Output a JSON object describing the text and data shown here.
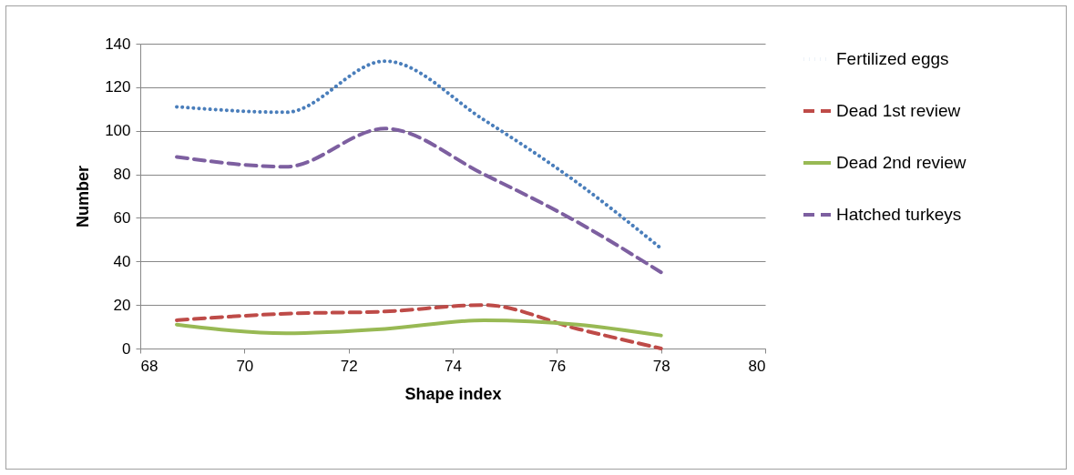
{
  "chart_data": {
    "type": "line",
    "xlabel": "Shape index",
    "ylabel": "Number",
    "xlim": [
      68,
      80
    ],
    "xticks": [
      68,
      70,
      72,
      74,
      76,
      78,
      80
    ],
    "ylim": [
      0,
      140
    ],
    "yticks": [
      0,
      20,
      40,
      60,
      80,
      100,
      120,
      140
    ],
    "grid": "y",
    "legend": "right",
    "marker": "none",
    "series": [
      {
        "name": "Fertilized eggs",
        "color": "#4a7ebb",
        "line_style": "dotted",
        "x": [
          68.7,
          70.8,
          72.7,
          74.6,
          76.4,
          78
        ],
        "values": [
          111,
          108.5,
          132,
          105,
          76,
          46
        ]
      },
      {
        "name": "Dead 1st review",
        "color": "#be4b48",
        "line_style": "dashed",
        "x": [
          68.7,
          70.8,
          72.7,
          74.6,
          76.4,
          78
        ],
        "values": [
          13,
          16,
          17,
          20,
          9,
          0
        ]
      },
      {
        "name": "Dead 2nd review",
        "color": "#98b954",
        "line_style": "solid",
        "x": [
          68.7,
          70.8,
          72.7,
          74.6,
          76.4,
          78
        ],
        "values": [
          11,
          7,
          9,
          13,
          11,
          6
        ]
      },
      {
        "name": "Hatched turkeys",
        "color": "#7d5fa0",
        "line_style": "dashed",
        "x": [
          68.7,
          70.8,
          72.7,
          74.6,
          76.4,
          78
        ],
        "values": [
          88,
          83.5,
          101,
          80,
          58,
          35
        ]
      }
    ]
  }
}
